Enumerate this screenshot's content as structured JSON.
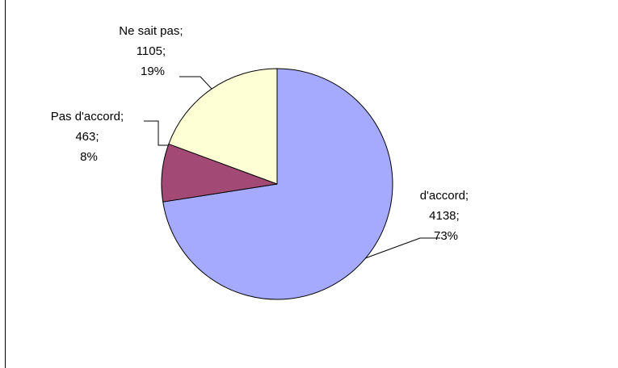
{
  "chart_data": {
    "type": "pie",
    "title": "",
    "slices": [
      {
        "label": "d'accord",
        "value": 4138,
        "percent": "73%",
        "color": "#A6AAFE"
      },
      {
        "label": "Pas d'accord",
        "value": 463,
        "percent": "8%",
        "color": "#A24A75"
      },
      {
        "label": "Ne sait pas",
        "value": 1105,
        "percent": "19%",
        "color": "#FFFFD6"
      }
    ],
    "data_labels": [
      {
        "lines": [
          "d'accord;",
          "4138;",
          "73%"
        ]
      },
      {
        "lines": [
          "Pas d'accord;",
          "463;",
          "8%"
        ]
      },
      {
        "lines": [
          "Ne sait pas;",
          "1105;",
          "19%"
        ]
      }
    ],
    "legend": "none",
    "outline_color": "#000000"
  }
}
